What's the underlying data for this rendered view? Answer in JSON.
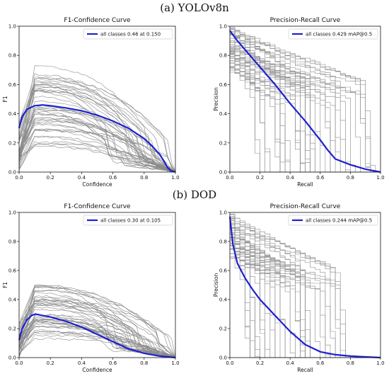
{
  "sections": [
    {
      "label": "(a) YOLOv8n"
    },
    {
      "label": "(b) DOD"
    }
  ],
  "colors": {
    "curve_main": "#1f1fd0",
    "curve_class": "#8a8a8a"
  },
  "chart_data": [
    {
      "type": "line",
      "title": "F1-Confidence Curve",
      "xlabel": "Confidence",
      "ylabel": "F1",
      "xlim": [
        0,
        1
      ],
      "ylim": [
        0,
        1
      ],
      "xticks": [
        "0.0",
        "0.2",
        "0.4",
        "0.6",
        "0.8",
        "1.0"
      ],
      "yticks": [
        "0.0",
        "0.2",
        "0.4",
        "0.6",
        "0.8",
        "1.0"
      ],
      "legend": "all classes 0.46 at 0.150",
      "legend_position": "top-right",
      "series": [
        {
          "name": "all classes 0.46 at 0.150",
          "x": [
            0.0,
            0.02,
            0.05,
            0.1,
            0.15,
            0.2,
            0.3,
            0.4,
            0.5,
            0.6,
            0.7,
            0.8,
            0.85,
            0.9,
            0.93,
            0.95,
            0.97,
            1.0
          ],
          "y": [
            0.3,
            0.38,
            0.43,
            0.455,
            0.46,
            0.455,
            0.44,
            0.42,
            0.39,
            0.35,
            0.3,
            0.23,
            0.18,
            0.12,
            0.07,
            0.03,
            0.01,
            0.0
          ]
        }
      ]
    },
    {
      "type": "line",
      "title": "Precision-Recall Curve",
      "xlabel": "Recall",
      "ylabel": "Precision",
      "xlim": [
        0,
        1
      ],
      "ylim": [
        0,
        1
      ],
      "xticks": [
        "0.0",
        "0.2",
        "0.4",
        "0.6",
        "0.8",
        "1.0"
      ],
      "yticks": [
        "0.0",
        "0.2",
        "0.4",
        "0.6",
        "0.8",
        "1.0"
      ],
      "legend": "all classes 0.429 mAP@0.5",
      "legend_position": "top-right",
      "series": [
        {
          "name": "all classes 0.429 mAP@0.5",
          "x": [
            0.0,
            0.02,
            0.05,
            0.1,
            0.2,
            0.3,
            0.4,
            0.5,
            0.6,
            0.65,
            0.7,
            0.8,
            0.9,
            1.0
          ],
          "y": [
            0.97,
            0.94,
            0.9,
            0.84,
            0.72,
            0.6,
            0.47,
            0.35,
            0.22,
            0.15,
            0.09,
            0.05,
            0.02,
            0.0
          ]
        }
      ]
    },
    {
      "type": "line",
      "title": "F1-Confidence Curve",
      "xlabel": "Confidence",
      "ylabel": "F1",
      "xlim": [
        0,
        1
      ],
      "ylim": [
        0,
        1
      ],
      "xticks": [
        "0.0",
        "0.2",
        "0.4",
        "0.6",
        "0.8",
        "1.0"
      ],
      "yticks": [
        "0.0",
        "0.2",
        "0.4",
        "0.6",
        "0.8",
        "1.0"
      ],
      "legend": "all classes 0.30 at 0.105",
      "legend_position": "top-right",
      "series": [
        {
          "name": "all classes 0.30 at 0.105",
          "x": [
            0.0,
            0.02,
            0.05,
            0.08,
            0.105,
            0.15,
            0.2,
            0.3,
            0.4,
            0.5,
            0.6,
            0.7,
            0.8,
            0.9,
            1.0
          ],
          "y": [
            0.12,
            0.2,
            0.26,
            0.29,
            0.3,
            0.29,
            0.28,
            0.25,
            0.21,
            0.16,
            0.11,
            0.06,
            0.03,
            0.01,
            0.0
          ]
        }
      ]
    },
    {
      "type": "line",
      "title": "Precision-Recall Curve",
      "xlabel": "Recall",
      "ylabel": "Precision",
      "xlim": [
        0,
        1
      ],
      "ylim": [
        0,
        1
      ],
      "xticks": [
        "0.0",
        "0.2",
        "0.4",
        "0.6",
        "0.8",
        "1.0"
      ],
      "yticks": [
        "0.0",
        "0.2",
        "0.4",
        "0.6",
        "0.8",
        "1.0"
      ],
      "legend": "all classes 0.244 mAP@0.5",
      "legend_position": "top-right",
      "series": [
        {
          "name": "all classes 0.244 mAP@0.5",
          "x": [
            0.0,
            0.02,
            0.05,
            0.1,
            0.15,
            0.2,
            0.3,
            0.4,
            0.5,
            0.6,
            0.7,
            0.8,
            0.9,
            1.0
          ],
          "y": [
            0.97,
            0.78,
            0.65,
            0.55,
            0.47,
            0.4,
            0.29,
            0.18,
            0.09,
            0.04,
            0.02,
            0.01,
            0.005,
            0.0
          ]
        }
      ]
    }
  ]
}
